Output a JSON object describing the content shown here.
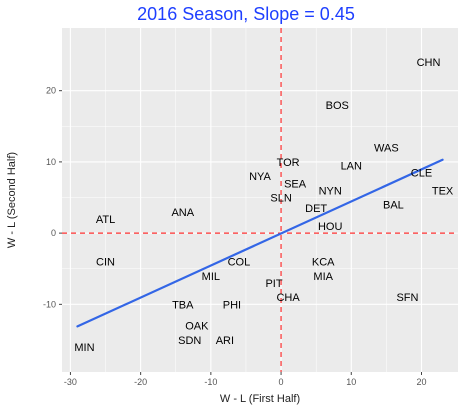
{
  "chart_data": {
    "type": "scatter",
    "title": "2016 Season, Slope =  0.45",
    "xlabel": "W - L (First Half)",
    "ylabel": "W - L (Second Half)",
    "xlim": [
      -31.2,
      25.2
    ],
    "ylim": [
      -19.5,
      28.8
    ],
    "xticks": [
      -30,
      -20,
      -10,
      0,
      10,
      20
    ],
    "yticks": [
      -10,
      0,
      10,
      20
    ],
    "x_tick_labels": [
      "-30",
      "-20",
      "-10",
      "0",
      "10",
      "20"
    ],
    "y_tick_labels": [
      "-10",
      "0",
      "10",
      "20"
    ],
    "grid": true,
    "reference_lines": {
      "x": 0,
      "y": 0,
      "color": "#ff3333",
      "style": "dashed"
    },
    "fit_line": {
      "x": [
        -29,
        23
      ],
      "y": [
        -13.1,
        10.3
      ],
      "color": "#3366e6"
    },
    "points": [
      {
        "team": "CHN",
        "x": 21,
        "y": 24
      },
      {
        "team": "BOS",
        "x": 8,
        "y": 18
      },
      {
        "team": "WAS",
        "x": 15,
        "y": 12
      },
      {
        "team": "TOR",
        "x": 1,
        "y": 10
      },
      {
        "team": "LAN",
        "x": 10,
        "y": 9.5
      },
      {
        "team": "CLE",
        "x": 20,
        "y": 8.5
      },
      {
        "team": "NYA",
        "x": -3,
        "y": 8
      },
      {
        "team": "SEA",
        "x": 2,
        "y": 7
      },
      {
        "team": "NYN",
        "x": 7,
        "y": 6
      },
      {
        "team": "TEX",
        "x": 23,
        "y": 6
      },
      {
        "team": "SLN",
        "x": 0,
        "y": 5
      },
      {
        "team": "BAL",
        "x": 16,
        "y": 4
      },
      {
        "team": "DET",
        "x": 5,
        "y": 3.5
      },
      {
        "team": "ANA",
        "x": -14,
        "y": 3
      },
      {
        "team": "ATL",
        "x": -25,
        "y": 2
      },
      {
        "team": "HOU",
        "x": 7,
        "y": 1
      },
      {
        "team": "CIN",
        "x": -25,
        "y": -4
      },
      {
        "team": "COL",
        "x": -6,
        "y": -4
      },
      {
        "team": "KCA",
        "x": 6,
        "y": -4
      },
      {
        "team": "MIL",
        "x": -10,
        "y": -6
      },
      {
        "team": "MIA",
        "x": 6,
        "y": -6
      },
      {
        "team": "PIT",
        "x": -1,
        "y": -7
      },
      {
        "team": "CHA",
        "x": 1,
        "y": -9
      },
      {
        "team": "TBA",
        "x": -14,
        "y": -10
      },
      {
        "team": "PHI",
        "x": -7,
        "y": -10
      },
      {
        "team": "SFN",
        "x": 18,
        "y": -9
      },
      {
        "team": "OAK",
        "x": -12,
        "y": -13
      },
      {
        "team": "SDN",
        "x": -13,
        "y": -15
      },
      {
        "team": "ARI",
        "x": -8,
        "y": -15
      },
      {
        "team": "MIN",
        "x": -28,
        "y": -16
      }
    ],
    "colors": {
      "panel_background": "#ebebeb",
      "grid_major": "#ffffff",
      "title": "#1e3fff"
    }
  }
}
